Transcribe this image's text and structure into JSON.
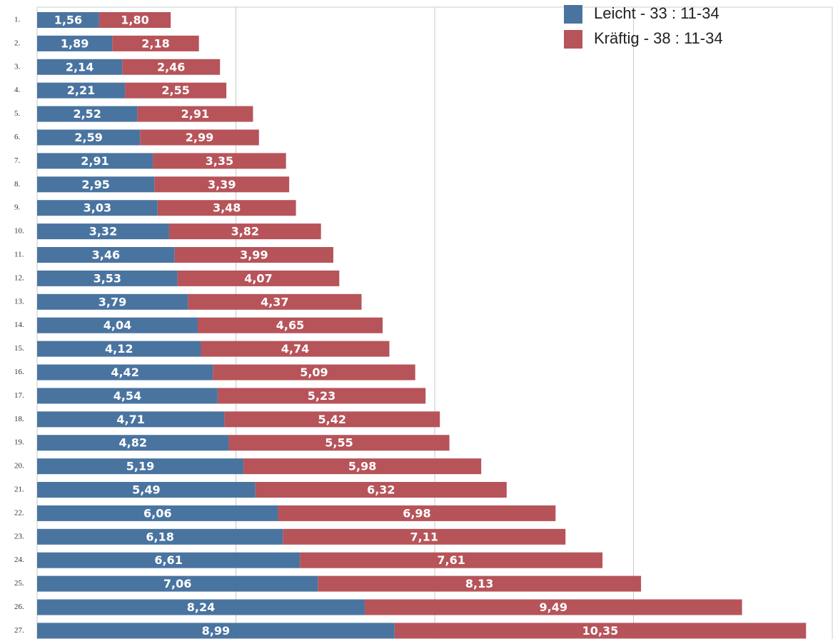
{
  "chart_data": {
    "type": "stacked_barh",
    "categories": [
      "1.",
      "2.",
      "3.",
      "4.",
      "5.",
      "6.",
      "7.",
      "8.",
      "9.",
      "10.",
      "11.",
      "12.",
      "13.",
      "14.",
      "15.",
      "16.",
      "17.",
      "18.",
      "19.",
      "20.",
      "21.",
      "22.",
      "23.",
      "24.",
      "25.",
      "26.",
      "27."
    ],
    "series": [
      {
        "name": "Leicht - 33 : 11-34",
        "color": "#4a74a0",
        "values": [
          1.56,
          1.89,
          2.14,
          2.21,
          2.52,
          2.59,
          2.91,
          2.95,
          3.03,
          3.32,
          3.46,
          3.53,
          3.79,
          4.04,
          4.12,
          4.42,
          4.54,
          4.71,
          4.82,
          5.19,
          5.49,
          6.06,
          6.18,
          6.61,
          7.06,
          8.24,
          8.99
        ],
        "value_labels": [
          "1,56",
          "1,89",
          "2,14",
          "2,21",
          "2,52",
          "2,59",
          "2,91",
          "2,95",
          "3,03",
          "3,32",
          "3,46",
          "3,53",
          "3,79",
          "4,04",
          "4,12",
          "4,42",
          "4,54",
          "4,71",
          "4,82",
          "5,19",
          "5,49",
          "6,06",
          "6,18",
          "6,61",
          "7,06",
          "8,24",
          "8,99"
        ]
      },
      {
        "name": "Kräftig - 38 : 11-34",
        "color": "#b6545a",
        "values": [
          1.8,
          2.18,
          2.46,
          2.55,
          2.91,
          2.99,
          3.35,
          3.39,
          3.48,
          3.82,
          3.99,
          4.07,
          4.37,
          4.65,
          4.74,
          5.09,
          5.23,
          5.42,
          5.55,
          5.98,
          6.32,
          6.98,
          7.11,
          7.61,
          8.13,
          9.49,
          10.35
        ],
        "value_labels": [
          "1,80",
          "2,18",
          "2,46",
          "2,55",
          "2,91",
          "2,99",
          "3,35",
          "3,39",
          "3,48",
          "3,82",
          "3,99",
          "4,07",
          "4,37",
          "4,65",
          "4,74",
          "5,09",
          "5,23",
          "5,42",
          "5,55",
          "5,98",
          "6,32",
          "6,98",
          "7,11",
          "7,61",
          "8,13",
          "9,49",
          "10,35"
        ]
      }
    ],
    "xlim": [
      0,
      20
    ],
    "xticks": [
      0,
      5,
      10,
      15,
      20
    ],
    "grid": true,
    "legend": "upper right"
  }
}
